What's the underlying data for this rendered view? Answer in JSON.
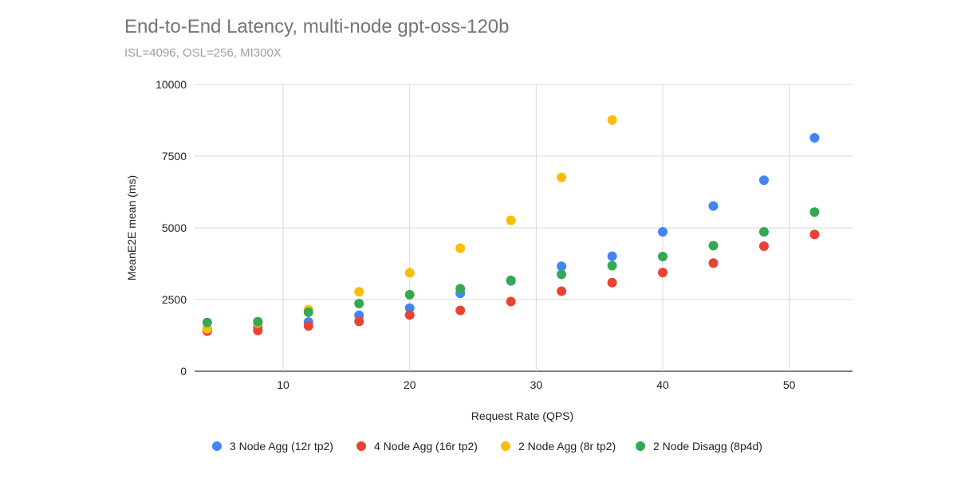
{
  "chart_data": {
    "type": "scatter",
    "title": "End-to-End Latency, multi-node gpt-oss-120b",
    "subtitle": "ISL=4096, OSL=256, MI300X",
    "xlabel": "Request Rate (QPS)",
    "ylabel": "MeanE2E mean (ms)",
    "xlim": [
      3,
      55
    ],
    "ylim": [
      0,
      10000
    ],
    "xticks": [
      10,
      20,
      30,
      40,
      50
    ],
    "yticks": [
      0,
      2500,
      5000,
      7500,
      10000
    ],
    "grid": true,
    "legend_position": "bottom",
    "series": [
      {
        "name": "3 Node Agg (12r tp2)",
        "color": "#4285f4",
        "points": [
          [
            4,
            1450
          ],
          [
            8,
            1550
          ],
          [
            12,
            1720
          ],
          [
            16,
            1950
          ],
          [
            20,
            2200
          ],
          [
            24,
            2720
          ],
          [
            28,
            3150
          ],
          [
            32,
            3660
          ],
          [
            36,
            4010
          ],
          [
            40,
            4860
          ],
          [
            44,
            5760
          ],
          [
            48,
            6660
          ],
          [
            52,
            8140
          ]
        ]
      },
      {
        "name": "4 Node Agg (16r tp2)",
        "color": "#ea4335",
        "points": [
          [
            4,
            1400
          ],
          [
            8,
            1420
          ],
          [
            12,
            1580
          ],
          [
            16,
            1740
          ],
          [
            20,
            1960
          ],
          [
            24,
            2120
          ],
          [
            28,
            2430
          ],
          [
            32,
            2790
          ],
          [
            36,
            3090
          ],
          [
            40,
            3440
          ],
          [
            44,
            3770
          ],
          [
            48,
            4360
          ],
          [
            52,
            4770
          ]
        ]
      },
      {
        "name": "2 Node Agg (8r tp2)",
        "color": "#fbbc04",
        "points": [
          [
            4,
            1480
          ],
          [
            8,
            1680
          ],
          [
            12,
            2150
          ],
          [
            16,
            2770
          ],
          [
            20,
            3430
          ],
          [
            24,
            4290
          ],
          [
            28,
            5260
          ],
          [
            32,
            6760
          ],
          [
            36,
            8760
          ]
        ]
      },
      {
        "name": "2 Node Disagg (8p4d)",
        "color": "#34a853",
        "points": [
          [
            4,
            1700
          ],
          [
            8,
            1730
          ],
          [
            12,
            2060
          ],
          [
            16,
            2360
          ],
          [
            20,
            2670
          ],
          [
            24,
            2880
          ],
          [
            28,
            3170
          ],
          [
            32,
            3380
          ],
          [
            36,
            3680
          ],
          [
            40,
            4000
          ],
          [
            44,
            4380
          ],
          [
            48,
            4860
          ],
          [
            52,
            5550
          ]
        ]
      }
    ]
  }
}
